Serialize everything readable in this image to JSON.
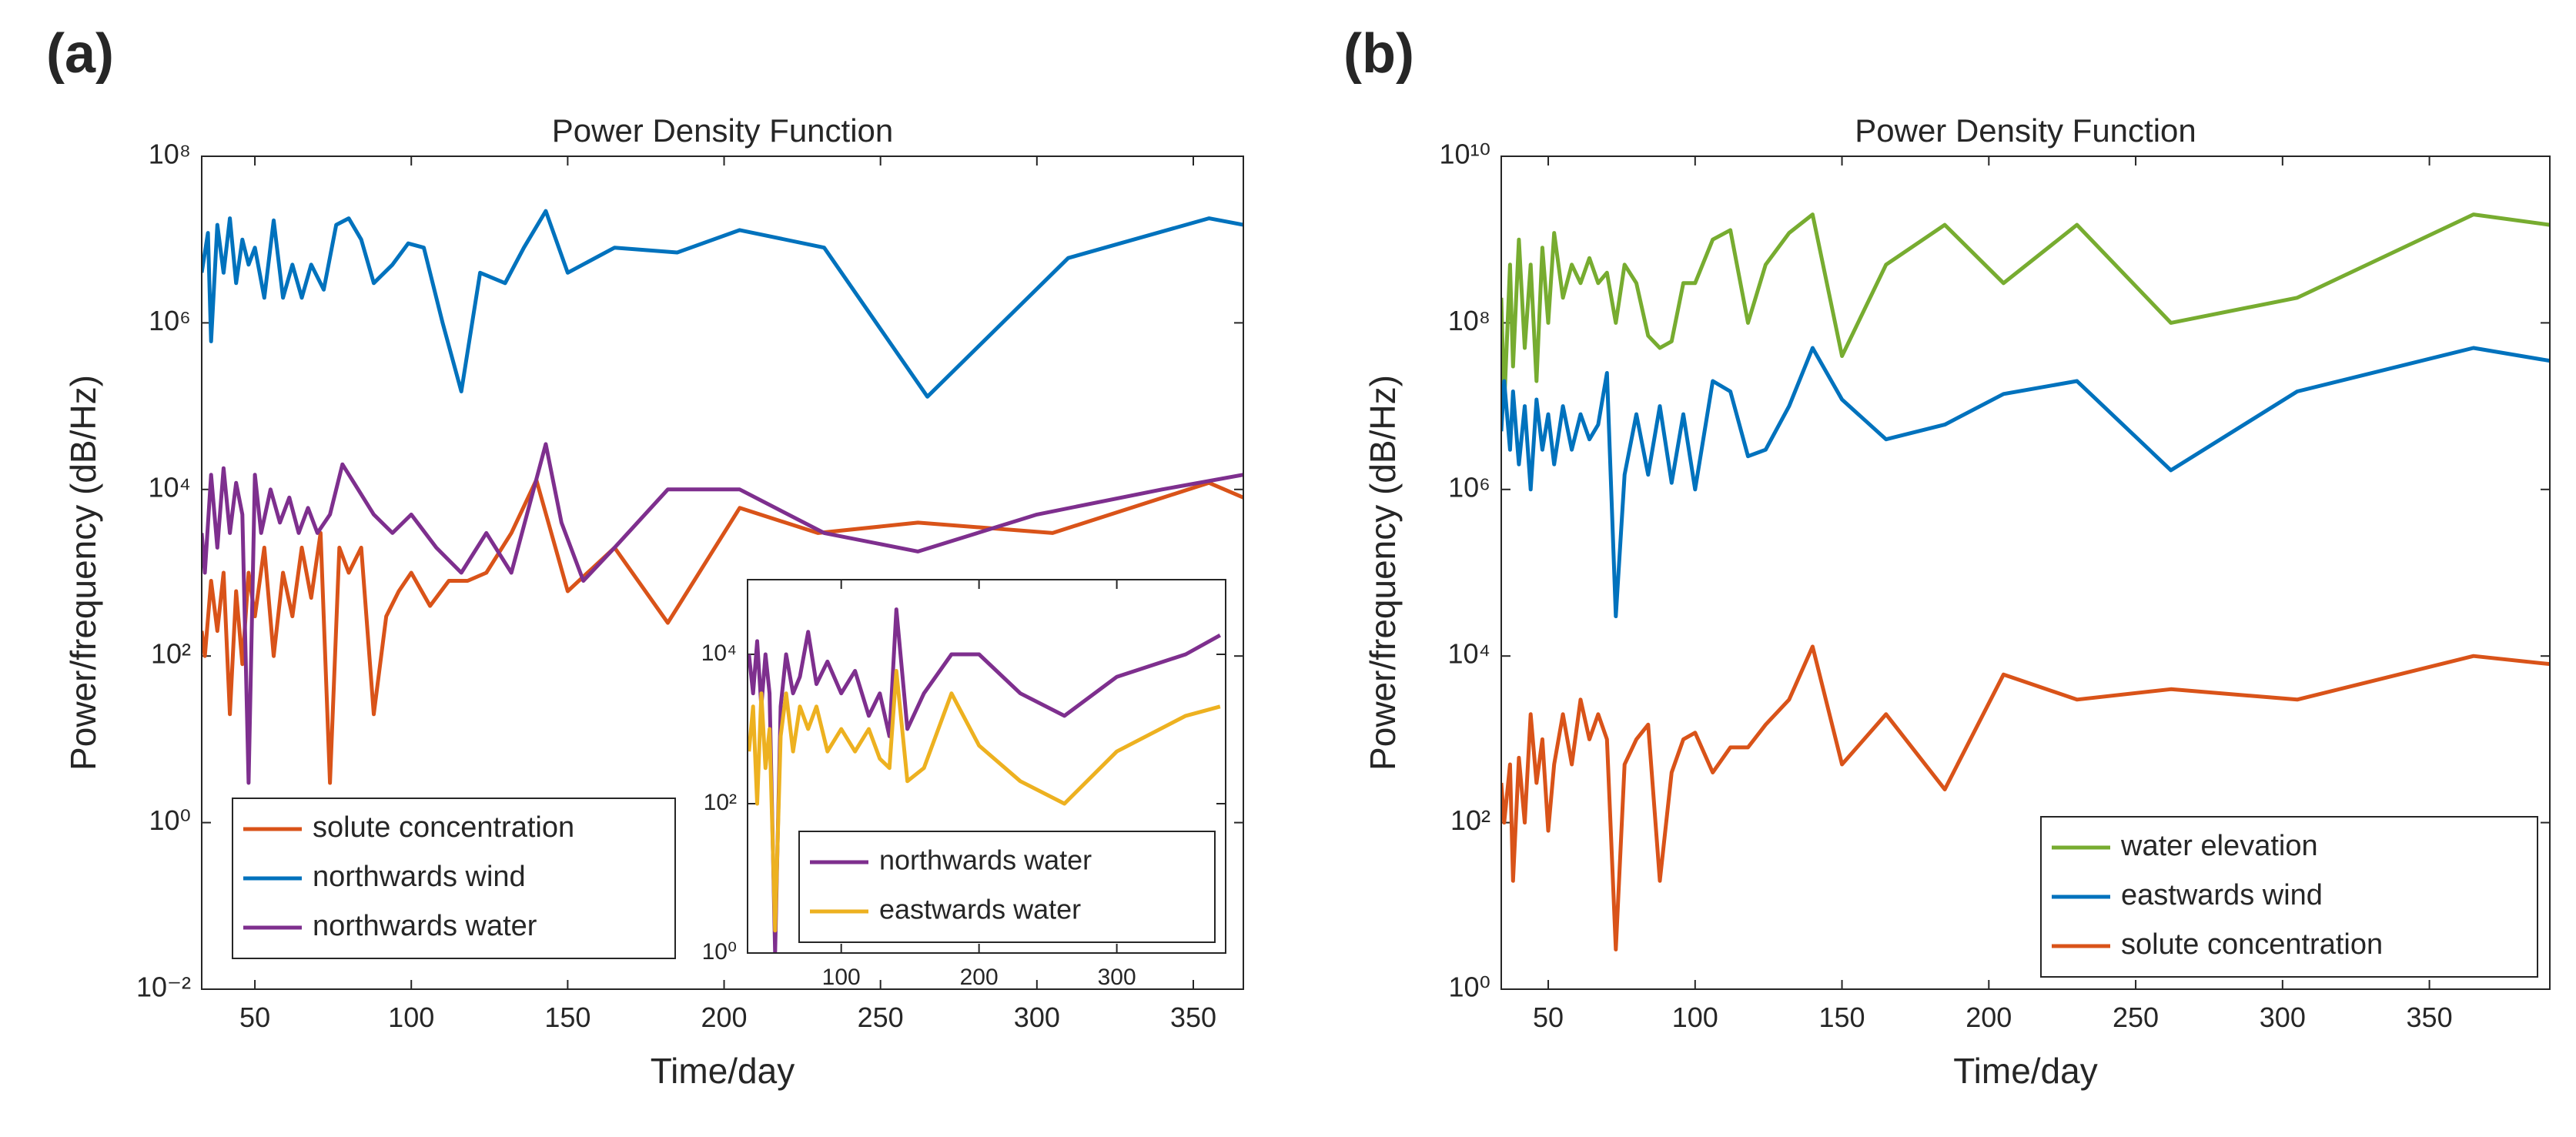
{
  "chart_data": [
    {
      "type": "line",
      "panel_label": "(a)",
      "title": "Power Density Function",
      "xlabel": "Time/day",
      "ylabel": "Power/frequency (dB/Hz)",
      "xlim": [
        33,
        366
      ],
      "xticks": [
        50,
        100,
        150,
        200,
        250,
        300,
        350
      ],
      "ylim": [
        0.01,
        100000000
      ],
      "ylog": true,
      "yticks": [
        {
          "value": 0.01,
          "label": "10⁻²"
        },
        {
          "value": 1,
          "label": "10⁰"
        },
        {
          "value": 100,
          "label": "10²"
        },
        {
          "value": 10000,
          "label": "10⁴"
        },
        {
          "value": 1000000,
          "label": "10⁶"
        },
        {
          "value": 100000000,
          "label": "10⁸"
        }
      ],
      "legend": "lower left",
      "series": [
        {
          "name": "solute concentration",
          "color": "#d95319",
          "x": [
            33,
            34,
            36,
            38,
            40,
            42,
            44,
            46,
            48,
            50,
            53,
            56,
            59,
            62,
            65,
            68,
            71,
            74,
            77,
            80,
            84,
            88,
            92,
            96,
            100,
            106,
            112,
            118,
            124,
            132,
            140,
            150,
            165,
            182,
            205,
            230,
            262,
            305,
            355,
            366
          ],
          "values": [
            200,
            100,
            800,
            200,
            1000,
            20,
            600,
            80,
            1000,
            300,
            2000,
            100,
            1000,
            300,
            2000,
            500,
            3000,
            3,
            2000,
            1000,
            2000,
            20,
            300,
            600,
            1000,
            400,
            800,
            800,
            1000,
            3000,
            13000,
            600,
            2000,
            250,
            6000,
            3000,
            4000,
            3000,
            12000,
            8000
          ]
        },
        {
          "name": "northwards wind",
          "color": "#0072bd",
          "x": [
            33,
            35,
            36,
            38,
            40,
            42,
            44,
            46,
            48,
            50,
            53,
            56,
            59,
            62,
            65,
            68,
            72,
            76,
            80,
            84,
            88,
            94,
            99,
            104,
            110,
            116,
            122,
            130,
            136,
            143,
            150,
            165,
            185,
            205,
            232,
            265,
            310,
            355,
            366
          ],
          "values": [
            4000000,
            12000000,
            600000,
            15000000,
            4000000,
            18000000,
            3000000,
            10000000,
            5000000,
            8000000,
            2000000,
            17000000,
            2000000,
            5000000,
            2000000,
            5000000,
            2500000,
            15000000,
            18000000,
            10000000,
            3000000,
            5000000,
            9000000,
            8000000,
            1000000,
            150000,
            4000000,
            3000000,
            8000000,
            22000000,
            4000000,
            8000000,
            7000000,
            13000000,
            8000000,
            130000,
            6000000,
            18000000,
            15000000
          ]
        },
        {
          "name": "northwards water",
          "color": "#7e2f8e",
          "x": [
            33,
            34,
            36,
            38,
            40,
            42,
            44,
            46,
            48,
            50,
            52,
            55,
            58,
            61,
            64,
            67,
            70,
            74,
            78,
            83,
            88,
            94,
            100,
            108,
            116,
            124,
            132,
            143,
            148,
            155,
            165,
            182,
            205,
            232,
            262,
            300,
            340,
            366
          ],
          "values": [
            3000,
            1000,
            15000,
            2000,
            18000,
            3000,
            12000,
            5000,
            3,
            15000,
            3000,
            10000,
            4000,
            8000,
            3000,
            6000,
            3000,
            5000,
            20000,
            10000,
            5000,
            3000,
            5000,
            2000,
            1000,
            3000,
            1000,
            35000,
            4000,
            800,
            2000,
            10000,
            10000,
            3000,
            1800,
            5000,
            10000,
            15000
          ]
        }
      ]
    },
    {
      "type": "line",
      "xlim": [
        32,
        379
      ],
      "xticks": [
        100,
        200,
        300
      ],
      "ylim": [
        1,
        100000
      ],
      "ylog": true,
      "yticks": [
        {
          "value": 1,
          "label": "10⁰"
        },
        {
          "value": 100,
          "label": "10²"
        },
        {
          "value": 10000,
          "label": "10⁴"
        }
      ],
      "legend": "lower right",
      "series": [
        {
          "name": "northwards water",
          "color": "#7e2f8e",
          "x": [
            33,
            36,
            39,
            42,
            45,
            48,
            52,
            56,
            60,
            65,
            70,
            76,
            82,
            90,
            100,
            110,
            120,
            128,
            135,
            140,
            148,
            160,
            180,
            200,
            230,
            262,
            300,
            350,
            375
          ],
          "values": [
            10000,
            3000,
            15000,
            2000,
            10000,
            3000,
            1,
            2000,
            10000,
            3000,
            5000,
            20000,
            4000,
            8000,
            3000,
            6000,
            1500,
            3000,
            800,
            40000,
            1000,
            3000,
            10000,
            10000,
            3000,
            1500,
            5000,
            10000,
            18000
          ]
        },
        {
          "name": "eastwards water",
          "color": "#edb120",
          "x": [
            33,
            36,
            39,
            42,
            45,
            48,
            52,
            56,
            60,
            65,
            70,
            76,
            82,
            90,
            100,
            110,
            120,
            128,
            135,
            140,
            148,
            160,
            180,
            200,
            230,
            262,
            300,
            350,
            375
          ],
          "values": [
            500,
            2000,
            100,
            3000,
            300,
            1000,
            2,
            800,
            3000,
            500,
            2000,
            1000,
            2000,
            500,
            1000,
            500,
            1000,
            400,
            300,
            6000,
            200,
            300,
            3000,
            600,
            200,
            100,
            500,
            1500,
            2000
          ]
        }
      ]
    },
    {
      "type": "line",
      "panel_label": "(b)",
      "title": "Power Density Function",
      "xlabel": "Time/day",
      "ylabel": "Power/frequency (dB/Hz)",
      "xlim": [
        34,
        391
      ],
      "xticks": [
        50,
        100,
        150,
        200,
        250,
        300,
        350
      ],
      "ylim": [
        1,
        10000000000
      ],
      "ylog": true,
      "yticks": [
        {
          "value": 1,
          "label": "10⁰"
        },
        {
          "value": 100,
          "label": "10²"
        },
        {
          "value": 10000,
          "label": "10⁴"
        },
        {
          "value": 1000000,
          "label": "10⁶"
        },
        {
          "value": 100000000,
          "label": "10⁸"
        },
        {
          "value": 10000000000,
          "label": "10¹⁰"
        }
      ],
      "legend": "lower right",
      "series": [
        {
          "name": "water elevation",
          "color": "#77ac30",
          "x": [
            34,
            35,
            37,
            38,
            40,
            42,
            44,
            46,
            48,
            50,
            52,
            55,
            58,
            61,
            64,
            67,
            70,
            73,
            76,
            80,
            84,
            88,
            92,
            96,
            100,
            106,
            112,
            118,
            124,
            132,
            140,
            150,
            165,
            185,
            205,
            230,
            262,
            305,
            365,
            391
          ],
          "values": [
            200000000,
            10000000,
            500000000,
            30000000,
            1000000000,
            50000000,
            500000000,
            20000000,
            800000000,
            100000000,
            1200000000,
            200000000,
            500000000,
            300000000,
            600000000,
            300000000,
            400000000,
            100000000,
            500000000,
            300000000,
            70000000,
            50000000,
            60000000,
            300000000,
            300000000,
            1000000000,
            1300000000,
            100000000,
            500000000,
            1200000000,
            2000000000,
            40000000,
            500000000,
            1500000000,
            300000000,
            1500000000,
            100000000,
            200000000,
            2000000000,
            1500000000
          ]
        },
        {
          "name": "eastwards wind",
          "color": "#0072bd",
          "x": [
            34,
            35,
            37,
            38,
            40,
            42,
            44,
            46,
            48,
            50,
            52,
            55,
            58,
            61,
            64,
            67,
            70,
            73,
            76,
            80,
            84,
            88,
            92,
            96,
            100,
            106,
            112,
            118,
            124,
            132,
            140,
            150,
            165,
            185,
            205,
            230,
            262,
            305,
            365,
            391
          ],
          "values": [
            5000000,
            20000000,
            3000000,
            15000000,
            2000000,
            10000000,
            1000000,
            12000000,
            3000000,
            8000000,
            2000000,
            10000000,
            3000000,
            8000000,
            4000000,
            6000000,
            25000000,
            30000,
            1500000,
            8000000,
            1500000,
            10000000,
            1200000,
            8000000,
            1000000,
            20000000,
            15000000,
            2500000,
            3000000,
            10000000,
            50000000,
            12000000,
            4000000,
            6000000,
            14000000,
            20000000,
            1700000,
            15000000,
            50000000,
            35000000
          ]
        },
        {
          "name": "solute concentration",
          "color": "#d95319",
          "x": [
            34,
            35,
            37,
            38,
            40,
            42,
            44,
            46,
            48,
            50,
            52,
            55,
            58,
            61,
            64,
            67,
            70,
            73,
            76,
            80,
            84,
            88,
            92,
            96,
            100,
            106,
            112,
            118,
            124,
            132,
            140,
            150,
            165,
            185,
            205,
            230,
            262,
            305,
            365,
            391
          ],
          "values": [
            300,
            100,
            500,
            20,
            600,
            100,
            2000,
            300,
            1000,
            80,
            500,
            2000,
            500,
            3000,
            1000,
            2000,
            1000,
            3,
            500,
            1000,
            1500,
            20,
            400,
            1000,
            1200,
            400,
            800,
            800,
            1500,
            3000,
            13000,
            500,
            2000,
            250,
            6000,
            3000,
            4000,
            3000,
            10000,
            8000
          ]
        }
      ]
    }
  ]
}
